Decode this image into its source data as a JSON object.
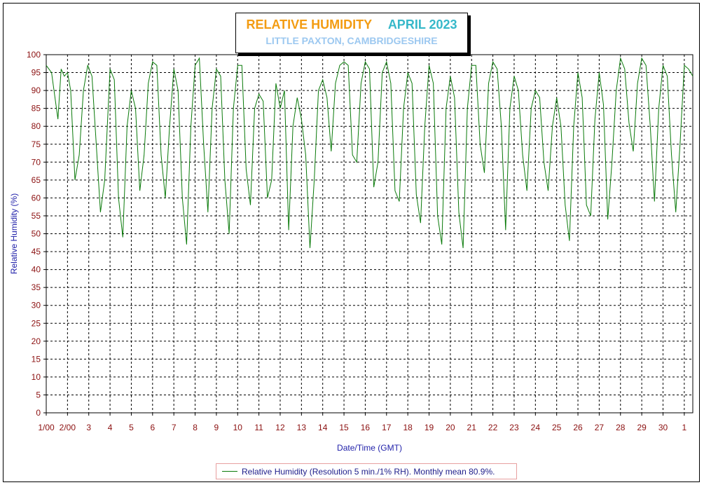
{
  "title": {
    "main": "RELATIVE HUMIDITY",
    "month": "APRIL 2023",
    "subtitle": "LITTLE PAXTON, CAMBRIDGESHIRE"
  },
  "legend": {
    "text": "Relative Humidity (Resolution 5 min./1% RH). Monthly mean 80.9%."
  },
  "colors": {
    "line": "#0a7a0a",
    "grid": "#000000",
    "tick_text": "#8b1010",
    "axis_label": "#2222aa",
    "title_main": "#f39c12",
    "title_month": "#36b8c9",
    "subtitle": "#9cc8f0"
  },
  "chart_data": {
    "type": "line",
    "xlabel": "Date/Time (GMT)",
    "ylabel": "Relative Humidity (%)",
    "ylim": [
      0,
      100
    ],
    "xlim_days": [
      1,
      31.4
    ],
    "grid": true,
    "x_tick_labels": [
      "1/00",
      "2/00",
      "3",
      "4",
      "5",
      "6",
      "7",
      "8",
      "9",
      "10",
      "11",
      "12",
      "13",
      "14",
      "15",
      "16",
      "17",
      "18",
      "19",
      "20",
      "21",
      "22",
      "23",
      "24",
      "25",
      "26",
      "27",
      "28",
      "29",
      "30",
      "1"
    ],
    "y_tick_labels": [
      "0",
      "5",
      "10",
      "15",
      "20",
      "25",
      "30",
      "35",
      "40",
      "45",
      "50",
      "55",
      "60",
      "65",
      "70",
      "75",
      "80",
      "85",
      "90",
      "95",
      "100"
    ],
    "series": [
      {
        "name": "Relative Humidity (Resolution 5 min./1% RH). Monthly mean 80.9%.",
        "x": [
          1.0,
          1.25,
          1.55,
          1.7,
          1.85,
          2.0,
          2.15,
          2.35,
          2.55,
          2.75,
          2.95,
          3.15,
          3.35,
          3.55,
          3.75,
          4.0,
          4.2,
          4.4,
          4.6,
          4.8,
          5.0,
          5.2,
          5.4,
          5.6,
          5.8,
          6.0,
          6.2,
          6.4,
          6.6,
          6.8,
          7.0,
          7.2,
          7.4,
          7.6,
          7.8,
          8.0,
          8.2,
          8.4,
          8.6,
          8.8,
          9.0,
          9.2,
          9.4,
          9.6,
          9.8,
          10.0,
          10.2,
          10.4,
          10.6,
          10.8,
          11.0,
          11.2,
          11.4,
          11.6,
          11.8,
          12.0,
          12.2,
          12.4,
          12.6,
          12.8,
          13.0,
          13.2,
          13.4,
          13.6,
          13.8,
          14.0,
          14.2,
          14.4,
          14.6,
          14.8,
          15.0,
          15.2,
          15.4,
          15.6,
          15.8,
          16.0,
          16.2,
          16.4,
          16.6,
          16.8,
          17.0,
          17.2,
          17.4,
          17.6,
          17.8,
          18.0,
          18.2,
          18.4,
          18.6,
          18.8,
          19.0,
          19.2,
          19.4,
          19.6,
          19.8,
          20.0,
          20.2,
          20.4,
          20.6,
          20.8,
          21.0,
          21.2,
          21.4,
          21.6,
          21.8,
          22.0,
          22.2,
          22.4,
          22.6,
          22.8,
          23.0,
          23.2,
          23.4,
          23.6,
          23.8,
          24.0,
          24.2,
          24.4,
          24.6,
          24.8,
          25.0,
          25.2,
          25.4,
          25.6,
          25.8,
          26.0,
          26.2,
          26.4,
          26.6,
          26.8,
          27.0,
          27.2,
          27.4,
          27.6,
          27.8,
          28.0,
          28.2,
          28.4,
          28.6,
          28.8,
          29.0,
          29.2,
          29.4,
          29.6,
          29.8,
          30.0,
          30.2,
          30.4,
          30.6,
          30.8,
          31.0,
          31.2,
          31.4
        ],
        "values": [
          97,
          95,
          82,
          96,
          94,
          95,
          90,
          65,
          72,
          90,
          97,
          94,
          75,
          56,
          65,
          96,
          93,
          60,
          49,
          80,
          90,
          85,
          62,
          72,
          92,
          98,
          97,
          72,
          60,
          80,
          96,
          90,
          60,
          47,
          80,
          97,
          99,
          75,
          56,
          85,
          96,
          94,
          65,
          50,
          85,
          97,
          97,
          68,
          58,
          85,
          89,
          87,
          60,
          65,
          92,
          85,
          90,
          51,
          80,
          88,
          82,
          72,
          46,
          65,
          90,
          93,
          88,
          73,
          92,
          97,
          98,
          97,
          72,
          70,
          92,
          98,
          96,
          63,
          70,
          95,
          98,
          92,
          62,
          59,
          85,
          95,
          92,
          61,
          53,
          80,
          97,
          92,
          55,
          47,
          85,
          94,
          88,
          56,
          46,
          85,
          97,
          97,
          75,
          67,
          92,
          98,
          96,
          80,
          51,
          85,
          94,
          90,
          72,
          62,
          85,
          90,
          88,
          70,
          62,
          80,
          88,
          80,
          58,
          48,
          80,
          95,
          88,
          58,
          55,
          82,
          95,
          86,
          54,
          70,
          90,
          99,
          96,
          81,
          73,
          92,
          99,
          97,
          80,
          59,
          85,
          97,
          94,
          72,
          56,
          75,
          97,
          96,
          94
        ]
      }
    ]
  }
}
